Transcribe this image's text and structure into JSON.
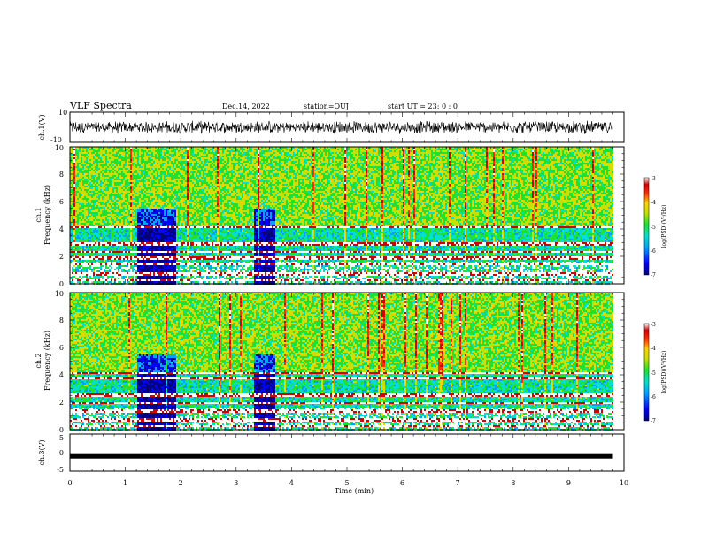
{
  "header": {
    "title": "VLF Spectra",
    "date": "Dec.14, 2022",
    "station": "station=OUJ",
    "start": "start  UT =  23: 0  : 0"
  },
  "colors": {
    "spectral": [
      "#000080",
      "#0000ff",
      "#00a0ff",
      "#00e0d0",
      "#20e030",
      "#c8e000",
      "#ffd000",
      "#ff3000",
      "#d00000",
      "#ffffff"
    ],
    "waveform": "#000000",
    "frame": "#000000"
  },
  "chart_data": [
    {
      "id": "ch1-waveform",
      "type": "line",
      "ylabel": "ch.1(V)",
      "ylim": [
        -10,
        10
      ],
      "yticks": [
        "10",
        "-10"
      ],
      "x_range_min": [
        0,
        9.8
      ],
      "description_level": "noisy waveform around approx -3..+3 V"
    },
    {
      "id": "ch1-spectrogram",
      "type": "heatmap",
      "ylabel_line1": "ch.1",
      "ylabel_line2": "Frequency (kHz)",
      "ylim": [
        0,
        10
      ],
      "yticks": [
        "0",
        "2",
        "4",
        "6",
        "8",
        "10"
      ],
      "x_range_min": [
        0,
        9.8
      ],
      "colorbar": {
        "label": "log(PSD)(V²/Hz)",
        "ticks": [
          "-3",
          "-4",
          "-5",
          "-6",
          "-7"
        ],
        "range": [
          -7,
          -3
        ]
      },
      "features": {
        "quiet_intervals_min": [
          [
            1.2,
            1.9
          ],
          [
            3.3,
            3.7
          ]
        ],
        "bands_khz": [
          0.3,
          0.8,
          1.5,
          1.9,
          2.4,
          3.0,
          4.2
        ]
      }
    },
    {
      "id": "ch2-spectrogram",
      "type": "heatmap",
      "ylabel_line1": "ch.2",
      "ylabel_line2": "Frequency (kHz)",
      "ylim": [
        0,
        10
      ],
      "yticks": [
        "0",
        "2",
        "4",
        "6",
        "8",
        "10"
      ],
      "x_range_min": [
        0,
        9.8
      ],
      "colorbar": {
        "label": "log(PSD)(V²/Hz)",
        "ticks": [
          "-3",
          "-4",
          "-5",
          "-6",
          "-7"
        ],
        "range": [
          -7,
          -3
        ]
      },
      "features": {
        "quiet_intervals_min": [
          [
            1.2,
            1.9
          ],
          [
            3.3,
            3.7
          ]
        ],
        "bands_khz": [
          0.3,
          0.8,
          1.4,
          2.0,
          2.6,
          3.8,
          4.2
        ]
      }
    },
    {
      "id": "ch3-waveform",
      "type": "line",
      "ylabel": "ch.3(V)",
      "ylim": [
        -5,
        5
      ],
      "yticks": [
        "5",
        "0",
        "-5"
      ],
      "x_range_min": [
        0,
        9.8
      ],
      "level_v": -1.0
    }
  ],
  "xaxis": {
    "label": "Time (min)",
    "range": [
      0,
      10
    ],
    "ticks": [
      "0",
      "1",
      "2",
      "3",
      "4",
      "5",
      "6",
      "7",
      "8",
      "9",
      "10"
    ]
  }
}
